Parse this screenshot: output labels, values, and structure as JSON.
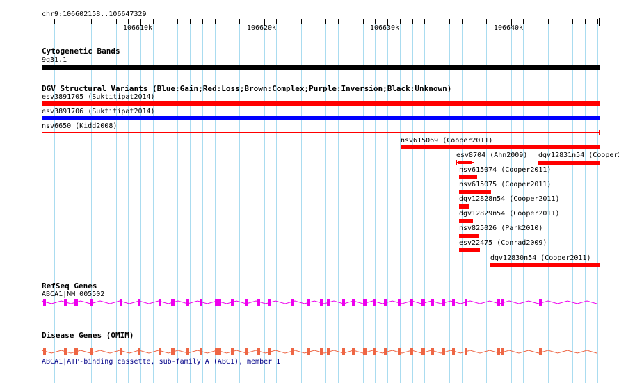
{
  "region": "chr9:106602158..106647329",
  "ruler": {
    "ticks": [
      "106610k",
      "106620k",
      "106630k",
      "106640k"
    ]
  },
  "tracks": {
    "cyto": {
      "title": "Cytogenetic Bands",
      "band": "9q31.1"
    },
    "dgv": {
      "title": "DGV Structural Variants (Blue:Gain;Red:Loss;Brown:Complex;Purple:Inversion;Black:Unknown)",
      "colors": {
        "gain": "#0000ff",
        "loss": "#ff0000"
      },
      "features": [
        {
          "label": "esv3891705 (Suktitipat2014)",
          "type": "loss"
        },
        {
          "label": "esv3891706 (Suktitipat2014)",
          "type": "gain"
        },
        {
          "label": "nsv6650 (Kidd2008)",
          "type": "loss"
        },
        {
          "label": "nsv615069 (Cooper2011)",
          "type": "loss"
        },
        {
          "label": "esv8704 (Ahn2009)",
          "type": "loss"
        },
        {
          "label": "dgv12831n54 (Cooper2",
          "type": "loss"
        },
        {
          "label": "nsv615074 (Cooper2011)",
          "type": "loss"
        },
        {
          "label": "nsv615075 (Cooper2011)",
          "type": "loss"
        },
        {
          "label": "dgv12828n54 (Cooper2011)",
          "type": "loss"
        },
        {
          "label": "dgv12829n54 (Cooper2011)",
          "type": "loss"
        },
        {
          "label": "nsv825026 (Park2010)",
          "type": "loss"
        },
        {
          "label": "esv22475 (Conrad2009)",
          "type": "loss"
        },
        {
          "label": "dgv12830n54 (Cooper2011)",
          "type": "loss"
        }
      ]
    },
    "refseq": {
      "title": "RefSeq Genes",
      "gene": "ABCA1|NM_005502",
      "color": "#ee00ee"
    },
    "omim": {
      "title": "Disease Genes (OMIM)",
      "gene": "ABCA1|ATP-binding cassette, sub-family A (ABC1), member 1",
      "color": "#ee6644",
      "label_color": "#000088"
    }
  }
}
